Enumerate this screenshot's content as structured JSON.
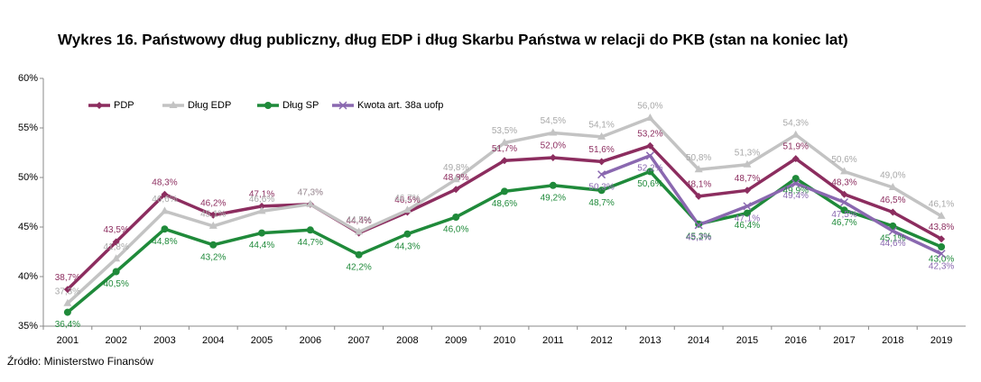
{
  "chart_data": {
    "type": "line",
    "title": "Wykres 16. Państwowy dług publiczny, dług EDP i dług Skarbu Państwa w relacji do PKB (stan na koniec lat)",
    "source": "Źródło: Ministerstwo Finansów",
    "categories": [
      "2001",
      "2002",
      "2003",
      "2004",
      "2005",
      "2006",
      "2007",
      "2008",
      "2009",
      "2010",
      "2011",
      "2012",
      "2013",
      "2014",
      "2015",
      "2016",
      "2017",
      "2018",
      "2019"
    ],
    "ylim": [
      35,
      60
    ],
    "yticks": [
      {
        "value": 35,
        "label": "35%"
      },
      {
        "value": 40,
        "label": "40%"
      },
      {
        "value": 45,
        "label": "45%"
      },
      {
        "value": 50,
        "label": "50%"
      },
      {
        "value": 55,
        "label": "55%"
      },
      {
        "value": 60,
        "label": "60%"
      }
    ],
    "grid": false,
    "legend": "top-left",
    "series": [
      {
        "name": "PDP",
        "color": "#8c2d5f",
        "marker": "diamond",
        "values": [
          38.7,
          43.5,
          48.3,
          46.2,
          47.1,
          47.3,
          44.4,
          46.5,
          48.8,
          51.7,
          52.0,
          51.6,
          53.2,
          48.1,
          48.7,
          51.9,
          48.3,
          46.5,
          43.8
        ],
        "value_labels": [
          "38,7%",
          "43,5%",
          "48,3%",
          "46,2%",
          "47,1%",
          "47,3%",
          "44,4%",
          "46,5%",
          "48,8%",
          "51,7%",
          "52,0%",
          "51,6%",
          "53,2%",
          "48,1%",
          "48,7%",
          "51,9%",
          "48,3%",
          "46,5%",
          "43,8%"
        ]
      },
      {
        "name": "Dług EDP",
        "color": "#c3c3c3",
        "marker": "triangle",
        "values": [
          37.3,
          41.8,
          46.6,
          45.1,
          46.6,
          47.3,
          44.5,
          46.7,
          49.8,
          53.5,
          54.5,
          54.1,
          56.0,
          50.8,
          51.3,
          54.3,
          50.6,
          49.0,
          46.1
        ],
        "value_labels": [
          "37,3%",
          "41,8%",
          "46,6%",
          "45,1%",
          "46,6%",
          "47,3%",
          "44,5%",
          "46,7%",
          "49,8%",
          "53,5%",
          "54,5%",
          "54,1%",
          "56,0%",
          "50,8%",
          "51,3%",
          "54,3%",
          "50,6%",
          "49,0%",
          "46,1%"
        ]
      },
      {
        "name": "Dług SP",
        "color": "#1f8a3a",
        "marker": "circle",
        "values": [
          36.4,
          40.5,
          44.8,
          43.2,
          44.4,
          44.7,
          42.2,
          44.3,
          46.0,
          48.6,
          49.2,
          48.7,
          50.6,
          45.3,
          46.4,
          49.9,
          46.7,
          45.1,
          43.0
        ],
        "value_labels": [
          "36,4%",
          "40,5%",
          "44,8%",
          "43,2%",
          "44,4%",
          "44,7%",
          "42,2%",
          "44,3%",
          "46,0%",
          "48,6%",
          "49,2%",
          "48,7%",
          "50,6%",
          "45,3%",
          "46,4%",
          "49,9%",
          "46,7%",
          "45,1%",
          "43,0%"
        ]
      },
      {
        "name": "Kwota art. 38a uofp",
        "color": "#8a68b0",
        "marker": "x",
        "values": [
          null,
          null,
          null,
          null,
          null,
          null,
          null,
          null,
          null,
          null,
          null,
          50.3,
          52.2,
          45.2,
          47.1,
          49.4,
          47.5,
          44.6,
          42.3
        ],
        "value_labels": [
          null,
          null,
          null,
          null,
          null,
          null,
          null,
          null,
          null,
          null,
          null,
          "50,3%",
          "52,2%",
          "45,2%",
          "47,1%",
          "49,4%",
          "47,5%",
          "44,6%",
          "42,3%"
        ]
      }
    ]
  }
}
